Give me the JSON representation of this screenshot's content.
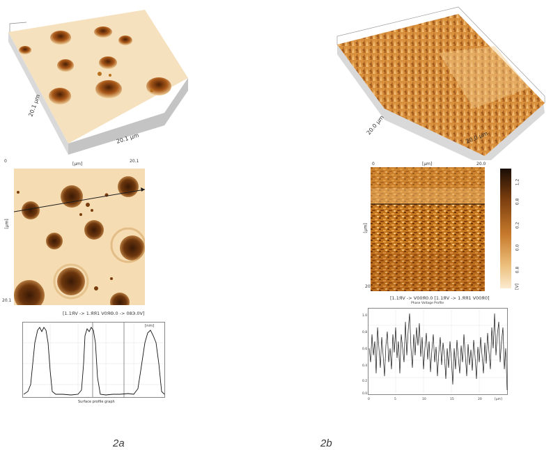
{
  "figure_a": {
    "surface3d": {
      "x_dim": "20.1 µm",
      "y_dim": "20.1 µm"
    },
    "map": {
      "top_left": "0",
      "top_mid": "[µm]",
      "top_right": "20.1",
      "left_mid": "[µm]",
      "bottom_left": "20.1",
      "footer": "[1.1ЯV -> 1.ЯЯ1 V0ЯΘ.0 -> 08Э.0V]"
    },
    "profile": {
      "top_right_unit": "[nm]",
      "x_label": "Surface profile graph"
    },
    "caption": "2a"
  },
  "figure_b": {
    "surface3d": {
      "x_dim": "20.0 µm",
      "y_dim": "20.0 µm"
    },
    "map": {
      "top_left": "0",
      "top_mid": "[µm]",
      "top_right": "20.0",
      "left_mid": "[µm]",
      "bottom_left": "20.0",
      "footer": "[1.1ЯV -> V00Я0.0 [1.1ЯV -> 1.ЯЯ1 V00Я0]",
      "footer_sub": "Phase Voltage Profile",
      "colorbar_ticks": [
        "1.2",
        "0.8",
        "0.2",
        "0.0",
        "0.8",
        "[V]"
      ]
    },
    "profile": {
      "y_ticks": [
        "1.0",
        "0.8",
        "0.6",
        "0.4",
        "0.2",
        "0.0"
      ],
      "x_ticks": [
        "0",
        "5",
        "10",
        "15",
        "20"
      ],
      "x_unit": "[µm]"
    },
    "caption": "2b"
  },
  "colors": {
    "surface_light": "#f7e2bf",
    "surface_dark": "#3a1d07",
    "phase_mid": "#c06c1e",
    "ink": "#222222"
  }
}
